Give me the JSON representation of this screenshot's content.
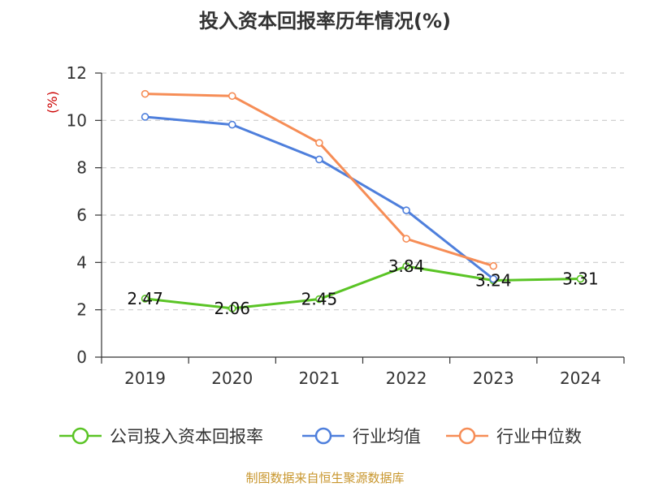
{
  "chart_data": {
    "type": "line",
    "title": "投入资本回报率历年情况(%)",
    "ylabel": "(%)",
    "xlabel": "",
    "ylim": [
      0,
      12
    ],
    "yticks": [
      0,
      2,
      4,
      6,
      8,
      10,
      12
    ],
    "categories": [
      "2019",
      "2020",
      "2021",
      "2022",
      "2023",
      "2024"
    ],
    "grid": true,
    "legend_position": "bottom",
    "series": [
      {
        "name": "公司投入资本回报率",
        "color": "#5ac425",
        "values": [
          2.47,
          2.06,
          2.45,
          3.84,
          3.24,
          3.31
        ],
        "labels": [
          "2.47",
          "2.06",
          "2.45",
          "3.84",
          "3.24",
          "3.31"
        ]
      },
      {
        "name": "行业均值",
        "color": "#4e7fdc",
        "values": [
          10.15,
          9.82,
          8.35,
          6.2,
          3.3,
          null
        ]
      },
      {
        "name": "行业中位数",
        "color": "#f68d56",
        "values": [
          11.12,
          11.03,
          9.05,
          5.0,
          3.85,
          null
        ]
      }
    ]
  },
  "footer": {
    "source": "制图数据来自恒生聚源数据库"
  },
  "colors": {
    "ylabel": "#cc0000",
    "source": "#c8962d",
    "grid": "#cccccc",
    "axis": "#333333"
  }
}
